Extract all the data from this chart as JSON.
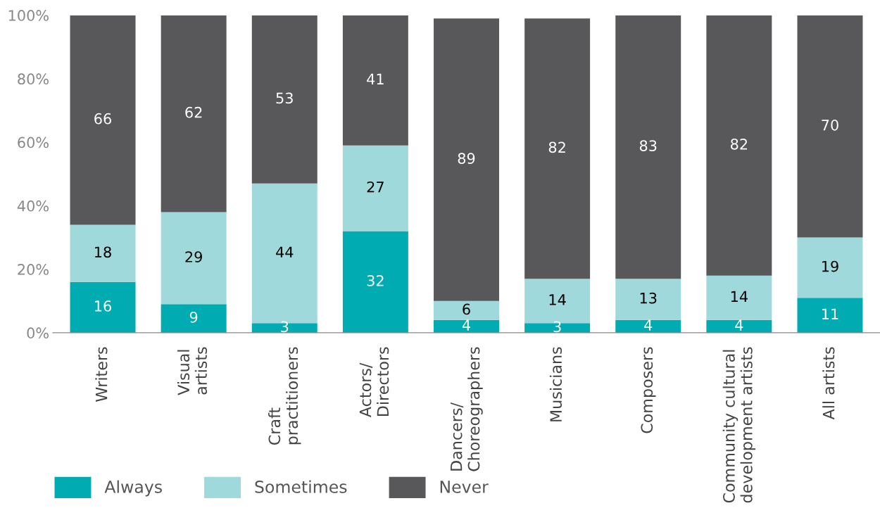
{
  "chart_data": {
    "type": "bar",
    "stacked": true,
    "categories": [
      "Writers",
      "Visual\nartists",
      "Craft\npractitioners",
      "Actors/\nDirectors",
      "Dancers/\nChoreographers",
      "Musicians",
      "Composers",
      "Community cultural\ndevelopment artists",
      "All artists"
    ],
    "series": [
      {
        "name": "Always",
        "color": "#00abb1",
        "values": [
          16,
          9,
          3,
          32,
          4,
          3,
          4,
          4,
          11
        ]
      },
      {
        "name": "Sometimes",
        "color": "#9fd9db",
        "values": [
          18,
          29,
          44,
          27,
          6,
          14,
          13,
          14,
          19
        ]
      },
      {
        "name": "Never",
        "color": "#58585a",
        "values": [
          66,
          62,
          53,
          41,
          89,
          82,
          83,
          82,
          70
        ]
      }
    ],
    "ylim": [
      0,
      100
    ],
    "yticks": [
      {
        "value": 0,
        "label": "0%"
      },
      {
        "value": 20,
        "label": "20%"
      },
      {
        "value": 40,
        "label": "40%"
      },
      {
        "value": 60,
        "label": "60%"
      },
      {
        "value": 80,
        "label": "80%"
      },
      {
        "value": 100,
        "label": "100%"
      }
    ],
    "data_labels": true,
    "grid": false,
    "legend": "bottom left"
  }
}
